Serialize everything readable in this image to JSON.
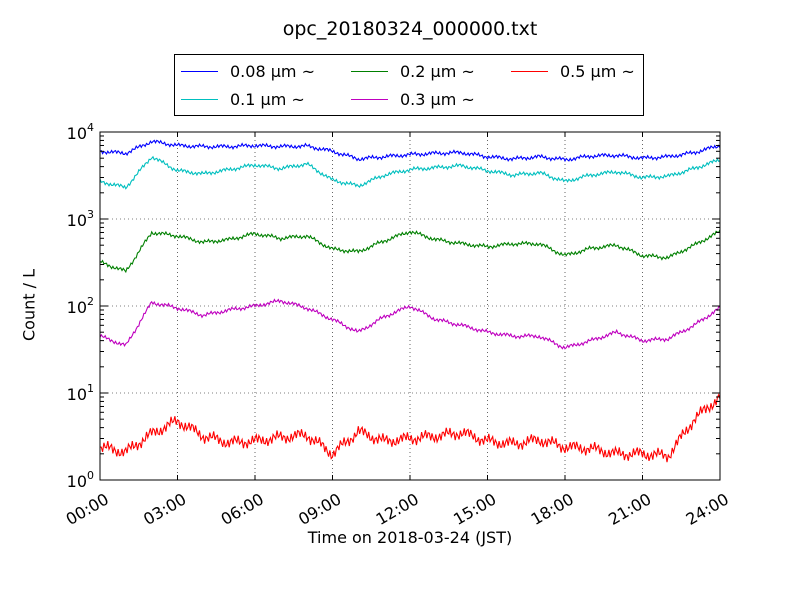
{
  "chart_data": {
    "type": "line",
    "title": "opc_20180324_000000.txt",
    "xlabel": "Time on 2018-03-24 (JST)",
    "ylabel": "Count / L",
    "yscale": "log",
    "ylim": [
      1,
      10000
    ],
    "xlim": [
      0,
      24
    ],
    "x_tick_labels": [
      "00:00",
      "03:00",
      "06:00",
      "09:00",
      "12:00",
      "15:00",
      "18:00",
      "21:00",
      "24:00"
    ],
    "y_tick_labels": [
      {
        "base": "10",
        "exp": "0"
      },
      {
        "base": "10",
        "exp": "1"
      },
      {
        "base": "10",
        "exp": "2"
      },
      {
        "base": "10",
        "exp": "3"
      },
      {
        "base": "10",
        "exp": "4"
      }
    ],
    "grid": true,
    "legend_position": "top-center",
    "x_unit": "hours",
    "x": [
      0,
      1,
      2,
      3,
      4,
      5,
      6,
      7,
      8,
      9,
      10,
      11,
      12,
      13,
      14,
      15,
      16,
      17,
      18,
      19,
      20,
      21,
      22,
      23,
      24
    ],
    "series": [
      {
        "name": "0.08 μm ~",
        "color": "#0000ff",
        "values": [
          6000,
          5700,
          7800,
          7000,
          6800,
          6800,
          7000,
          6800,
          6900,
          6000,
          4900,
          5200,
          5500,
          5700,
          5800,
          5200,
          4900,
          5200,
          4800,
          5300,
          5400,
          5000,
          5200,
          5800,
          7000
        ]
      },
      {
        "name": "0.1 μm ~",
        "color": "#00bfbf",
        "values": [
          2700,
          2300,
          5200,
          3600,
          3300,
          3700,
          4200,
          3800,
          4300,
          2800,
          2400,
          3200,
          3700,
          3900,
          4100,
          3600,
          3200,
          3400,
          2700,
          3200,
          3500,
          3000,
          3100,
          3800,
          4800
        ]
      },
      {
        "name": "0.2 μm ~",
        "color": "#008000",
        "values": [
          320,
          250,
          700,
          640,
          540,
          580,
          680,
          600,
          640,
          450,
          420,
          560,
          720,
          580,
          520,
          480,
          520,
          520,
          380,
          460,
          500,
          380,
          360,
          500,
          720
        ]
      },
      {
        "name": "0.3 μm ~",
        "color": "#bf00bf",
        "values": [
          45,
          35,
          110,
          95,
          78,
          90,
          100,
          115,
          95,
          70,
          50,
          75,
          100,
          70,
          60,
          50,
          45,
          45,
          33,
          40,
          50,
          40,
          42,
          60,
          95
        ]
      },
      {
        "name": "0.5 μm ~",
        "color": "#ff0000",
        "values": [
          2.4,
          2.1,
          3.4,
          4.8,
          3.2,
          2.7,
          2.8,
          3.1,
          3.3,
          2.0,
          3.6,
          2.8,
          3.0,
          3.2,
          3.5,
          2.8,
          2.6,
          2.9,
          2.4,
          2.3,
          2.0,
          2.0,
          1.9,
          5.0,
          9.0
        ]
      }
    ]
  }
}
